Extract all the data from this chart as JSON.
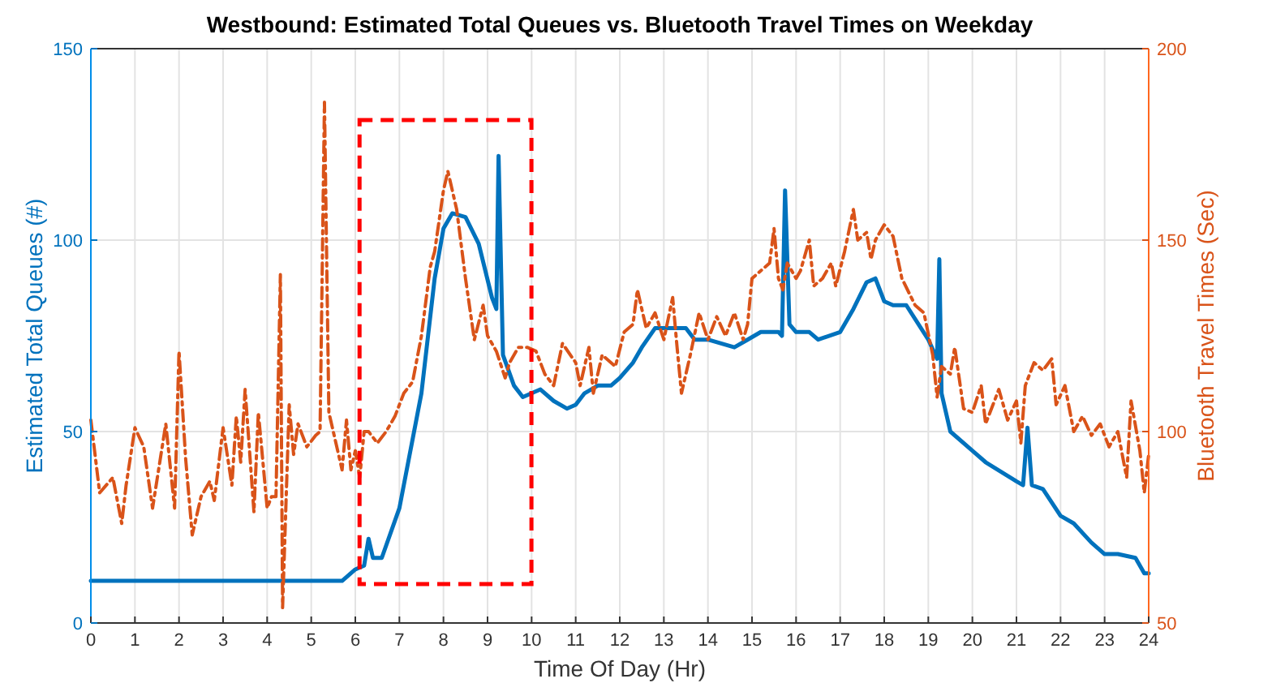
{
  "chart_data": {
    "type": "line",
    "title": "Westbound: Estimated Total Queues vs. Bluetooth Travel Times on Weekday",
    "xlabel": "Time Of Day (Hr)",
    "ylabel": "Estimated Total Queues (#)",
    "y2label": "Bluetooth Travel Times (Sec)",
    "xlim": [
      0,
      24
    ],
    "xticks": [
      0,
      1,
      2,
      3,
      4,
      5,
      6,
      7,
      8,
      9,
      10,
      11,
      12,
      13,
      14,
      15,
      16,
      17,
      18,
      19,
      20,
      21,
      22,
      23,
      24
    ],
    "ylim": [
      0,
      150
    ],
    "yticks": [
      0,
      50,
      100,
      150
    ],
    "y2lim": [
      50,
      200
    ],
    "y2ticks": [
      50,
      100,
      150,
      200
    ],
    "grid": true,
    "series": [
      {
        "name": null,
        "color": "#0072bd",
        "line_style": "solid",
        "x": [
          0,
          5.7,
          6,
          6.2,
          6.3,
          6.4,
          6.6,
          7,
          7.5,
          7.8,
          8,
          8.2,
          8.5,
          8.8,
          9.1,
          9.2,
          9.25,
          9.35,
          9.6,
          9.8,
          10,
          10.2,
          10.5,
          10.8,
          11,
          11.2,
          11.5,
          11.8,
          12,
          12.3,
          12.5,
          12.8,
          13.5,
          13.7,
          14,
          14.3,
          14.6,
          14.9,
          15.2,
          15.6,
          15.68,
          15.75,
          15.85,
          16,
          16.3,
          16.5,
          17,
          17.3,
          17.6,
          17.8,
          18,
          18.2,
          18.5,
          19,
          19.2,
          19.25,
          19.3,
          19.5,
          20,
          20.3,
          21,
          21.15,
          21.25,
          21.35,
          21.6,
          22,
          22.3,
          22.7,
          23,
          23.3,
          23.7,
          23.9,
          24
        ],
        "values": [
          11,
          11,
          14,
          15,
          22,
          17,
          17,
          30,
          60,
          90,
          103,
          107,
          106,
          99,
          85,
          82,
          122,
          70,
          62,
          59,
          60,
          61,
          58,
          56,
          57,
          60,
          62,
          62,
          64,
          68,
          72,
          77,
          77,
          74,
          74,
          73,
          72,
          74,
          76,
          76,
          75,
          113,
          78,
          76,
          76,
          74,
          76,
          82,
          89,
          90,
          84,
          83,
          83,
          74,
          69,
          95,
          60,
          50,
          45,
          42,
          37,
          36,
          51,
          36,
          35,
          28,
          26,
          21,
          18,
          18,
          17,
          13,
          13
        ]
      },
      {
        "name": null,
        "color": "#d95319",
        "axis": "y2",
        "line_style": "dashed",
        "x": [
          0,
          0.2,
          0.5,
          0.7,
          0.8,
          1,
          1.2,
          1.4,
          1.7,
          1.9,
          2,
          2.15,
          2.3,
          2.5,
          2.7,
          2.8,
          3,
          3.2,
          3.3,
          3.4,
          3.5,
          3.7,
          3.8,
          4,
          4.1,
          4.2,
          4.3,
          4.35,
          4.5,
          4.6,
          4.7,
          4.9,
          5.1,
          5.2,
          5.3,
          5.4,
          5.6,
          5.7,
          5.8,
          5.9,
          6,
          6.1,
          6.2,
          6.3,
          6.5,
          6.7,
          6.9,
          7.1,
          7.3,
          7.5,
          7.7,
          7.8,
          8,
          8.1,
          8.3,
          8.5,
          8.7,
          8.9,
          9,
          9.2,
          9.4,
          9.5,
          9.7,
          9.9,
          10.1,
          10.3,
          10.5,
          10.7,
          11,
          11.1,
          11.3,
          11.4,
          11.6,
          11.9,
          12.1,
          12.3,
          12.4,
          12.6,
          12.8,
          13,
          13.2,
          13.3,
          13.4,
          13.6,
          13.8,
          14,
          14.2,
          14.4,
          14.6,
          14.8,
          14.9,
          15,
          15.2,
          15.4,
          15.5,
          15.6,
          15.7,
          15.8,
          16,
          16.1,
          16.3,
          16.4,
          16.6,
          16.8,
          16.9,
          17.1,
          17.3,
          17.4,
          17.6,
          17.7,
          17.8,
          18,
          18.2,
          18.4,
          18.7,
          18.9,
          19.1,
          19.2,
          19.3,
          19.5,
          19.6,
          19.8,
          20,
          20.2,
          20.3,
          20.6,
          20.8,
          21,
          21.1,
          21.2,
          21.4,
          21.6,
          21.8,
          21.9,
          22.1,
          22.3,
          22.5,
          22.7,
          22.9,
          23.1,
          23.3,
          23.5,
          23.6,
          23.8,
          23.9,
          24
        ],
        "values": [
          103,
          84,
          88,
          76,
          86,
          101,
          96,
          80,
          102,
          80,
          121,
          93,
          73,
          83,
          87,
          82,
          101,
          86,
          104,
          92,
          111,
          79,
          105,
          80,
          83,
          83,
          141,
          54,
          107,
          94,
          102,
          96,
          99,
          100,
          186,
          105,
          95,
          90,
          103,
          90,
          95,
          88,
          100,
          100,
          97,
          100,
          104,
          110,
          113,
          125,
          143,
          147,
          163,
          168,
          158,
          140,
          124,
          133,
          125,
          121,
          114,
          118,
          122,
          122,
          121,
          115,
          112,
          123,
          118,
          112,
          122,
          110,
          120,
          117,
          126,
          128,
          137,
          127,
          131,
          124,
          135,
          122,
          110,
          120,
          131,
          124,
          130,
          125,
          131,
          124,
          128,
          140,
          142,
          144,
          153,
          140,
          137,
          144,
          140,
          142,
          150,
          138,
          140,
          144,
          138,
          147,
          158,
          150,
          152,
          145,
          150,
          154,
          151,
          140,
          133,
          131,
          120,
          109,
          117,
          115,
          122,
          106,
          105,
          112,
          102,
          111,
          103,
          108,
          97,
          112,
          118,
          116,
          119,
          107,
          112,
          100,
          104,
          99,
          102,
          96,
          100,
          88,
          108,
          95,
          84,
          94
        ]
      }
    ]
  }
}
